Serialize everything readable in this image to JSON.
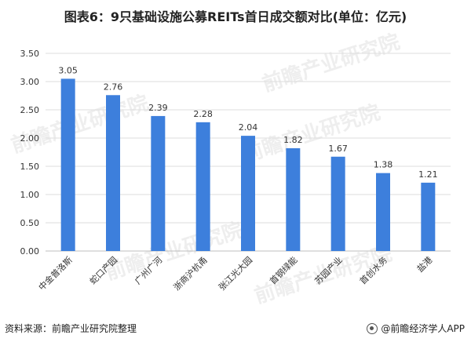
{
  "title": "图表6：9只基础设施公募REITs首日成交额对比(单位：亿元)",
  "source": "资料来源：前瞻产业研究院整理",
  "brand": "@前瞻经济学人APP",
  "watermark": "前瞻产业研究院",
  "colors": {
    "bar": "#3d7fdc",
    "axis": "#bfbfbf",
    "grid": "#dddddd",
    "text": "#333333"
  },
  "chart_data": {
    "type": "bar",
    "title": "图表6：9只基础设施公募REITs首日成交额对比(单位：亿元)",
    "categories": [
      "中金普洛斯",
      "蛇口产园",
      "广州广河",
      "浙商沪杭甬",
      "张江光大园",
      "首钢绿能",
      "苏园产业",
      "首创水务",
      "盐港"
    ],
    "values": [
      3.05,
      2.76,
      2.39,
      2.28,
      2.04,
      1.82,
      1.67,
      1.38,
      1.21
    ],
    "value_labels": [
      "3.05",
      "2.76",
      "2.39",
      "2.28",
      "2.04",
      "1.82",
      "1.67",
      "1.38",
      "1.21"
    ],
    "yticks": [
      "0.00",
      "0.50",
      "1.00",
      "1.50",
      "2.00",
      "2.50",
      "3.00",
      "3.50"
    ],
    "ylim": [
      0,
      3.5
    ],
    "xlabel": "",
    "ylabel": "",
    "grid": true,
    "legend": "none"
  }
}
